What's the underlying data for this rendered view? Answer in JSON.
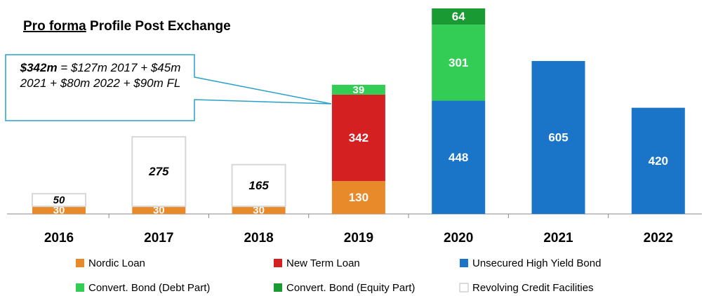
{
  "chart_data": {
    "type": "stacked_bar",
    "title": {
      "underlined": "Pro forma",
      "rest": "Profile Post Exchange"
    },
    "annotation": {
      "emphasis": "$342m",
      "text": "= $127m 2017 + $45m 2021 + $80m 2022 + $90m FL"
    },
    "categories": [
      "2016",
      "2017",
      "2018",
      "2019",
      "2020",
      "2021",
      "2022"
    ],
    "series": [
      {
        "name": "Nordic Loan",
        "color": "#e8892a",
        "values": [
          30,
          30,
          30,
          130,
          null,
          null,
          null
        ]
      },
      {
        "name": "New Term Loan",
        "color": "#d42020",
        "values": [
          null,
          null,
          null,
          342,
          null,
          null,
          null
        ]
      },
      {
        "name": "Unsecured High Yield Bond",
        "color": "#1a74c8",
        "values": [
          null,
          null,
          null,
          null,
          448,
          605,
          420
        ]
      },
      {
        "name": "Convert. Bond (Debt Part)",
        "color": "#33cc55",
        "values": [
          null,
          null,
          null,
          39,
          301,
          null,
          null
        ]
      },
      {
        "name": "Convert. Bond (Equity Part)",
        "color": "#1a9a33",
        "values": [
          null,
          null,
          null,
          null,
          64,
          null,
          null
        ]
      },
      {
        "name": "Revolving Credit Facilities",
        "color": "#ffffff",
        "values": [
          50,
          275,
          165,
          null,
          null,
          null,
          null
        ]
      }
    ]
  }
}
